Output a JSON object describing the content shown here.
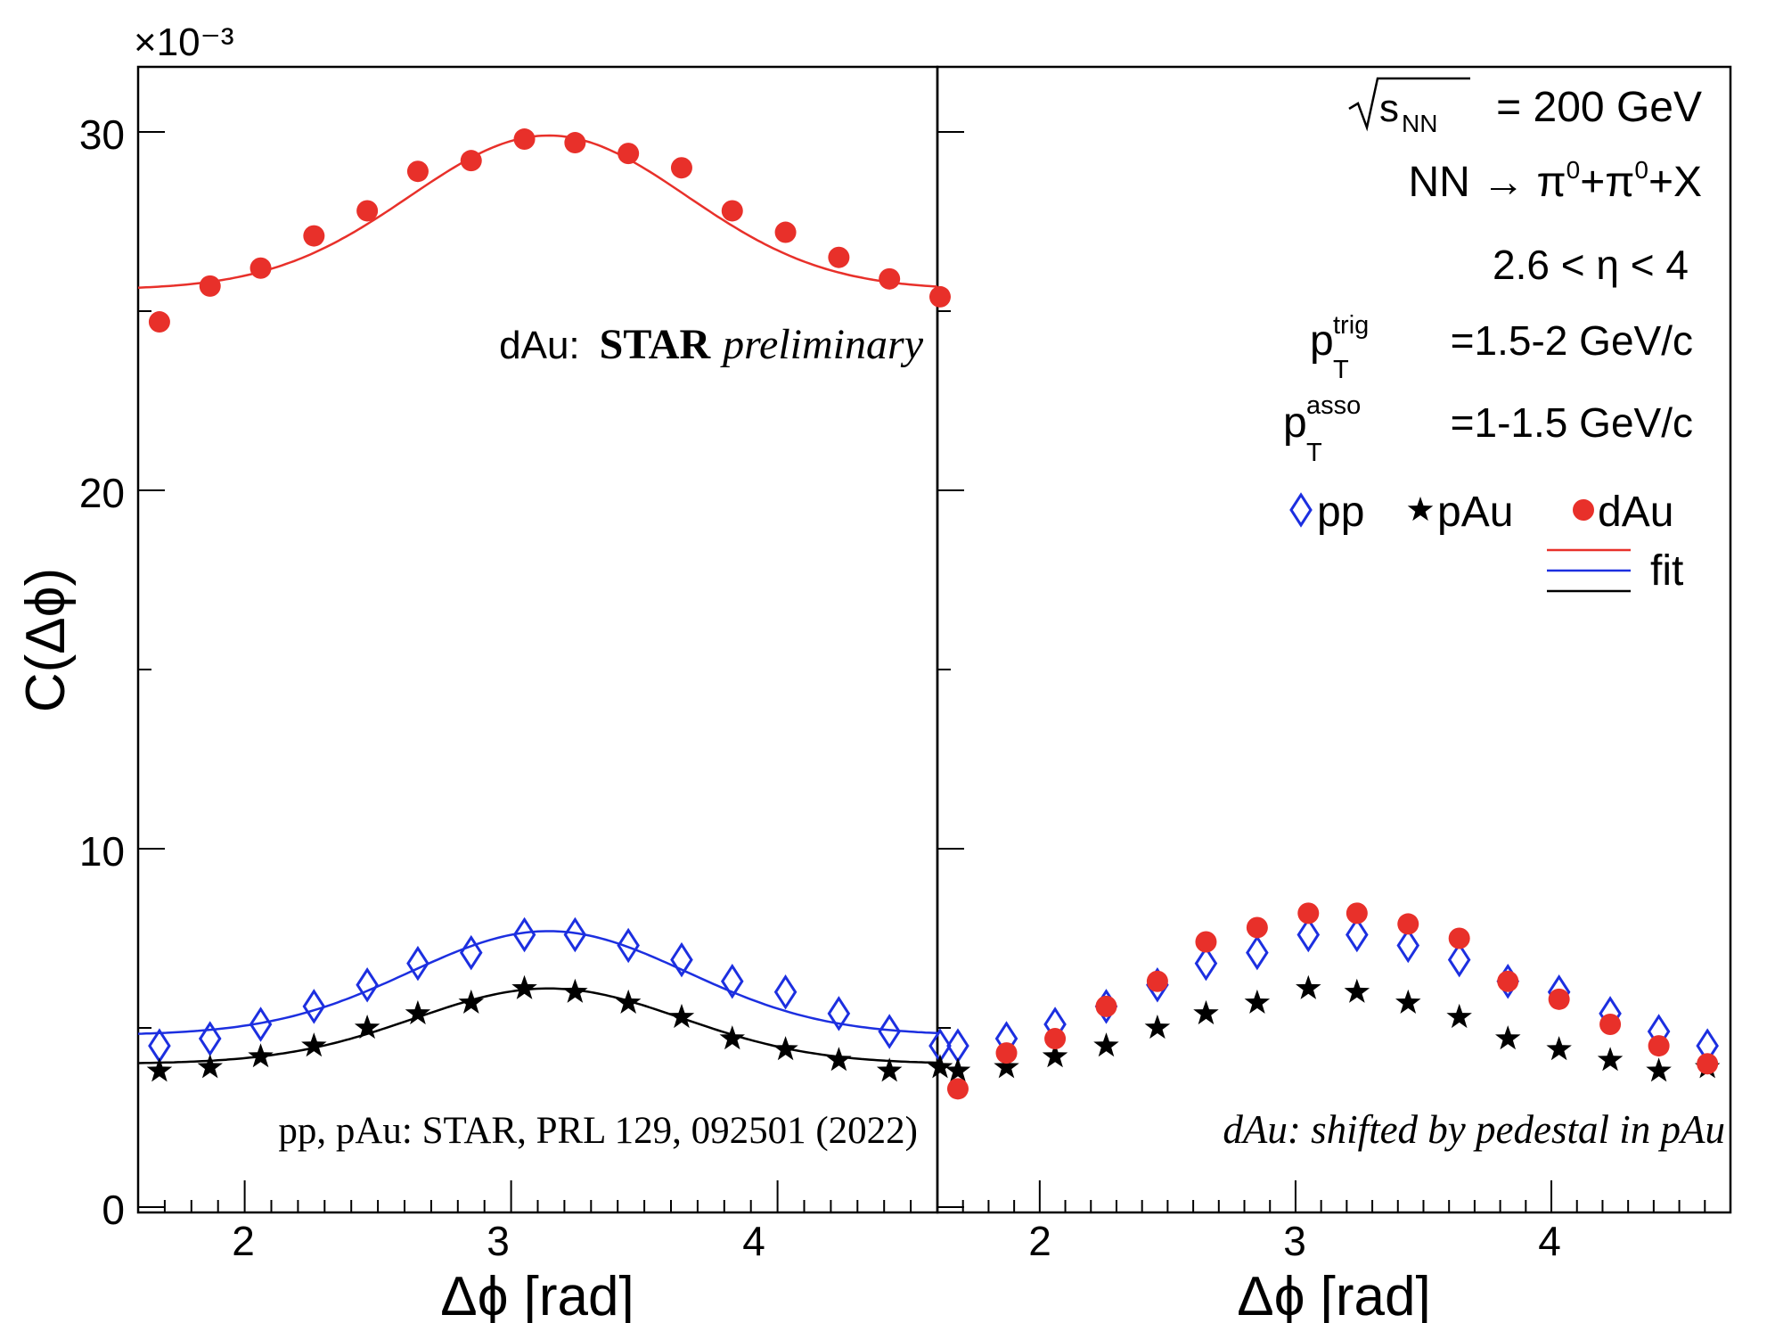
{
  "chart_data": {
    "type": "scatter",
    "ylabel": "C(Δϕ)",
    "y_multiplier": "×10⁻³",
    "ylim": [
      0,
      32
    ],
    "y_ticks": [
      0,
      10,
      20,
      30
    ],
    "y_tick_labels": [
      "0",
      "10",
      "20",
      "30"
    ],
    "grid": false,
    "panels": [
      {
        "xlabel": "Δϕ [rad]",
        "xlim": [
          1.6,
          4.6
        ],
        "x_ticks": [
          2,
          3,
          4
        ],
        "x_tick_labels": [
          "2",
          "3",
          "4"
        ],
        "annotations": {
          "top_plain": "dAu:",
          "top_bold": "STAR",
          "top_italic": "preliminary",
          "bottom": "pp, pAu: STAR, PRL 129, 092501 (2022)"
        },
        "series": [
          {
            "name": "dAu",
            "marker": "circle",
            "color": "#e8302a",
            "x": [
              1.68,
              1.87,
              2.06,
              2.26,
              2.46,
              2.65,
              2.85,
              3.05,
              3.24,
              3.44,
              3.64,
              3.83,
              4.03,
              4.23,
              4.42,
              4.61
            ],
            "y": [
              24.7,
              25.7,
              26.2,
              27.1,
              27.8,
              28.9,
              29.2,
              29.8,
              29.7,
              29.4,
              29.0,
              27.8,
              27.2,
              26.5,
              25.9,
              25.4
            ]
          },
          {
            "name": "pp",
            "marker": "diamond-open",
            "color": "#1c2fe0",
            "x": [
              1.68,
              1.87,
              2.06,
              2.26,
              2.46,
              2.65,
              2.85,
              3.05,
              3.24,
              3.44,
              3.64,
              3.83,
              4.03,
              4.23,
              4.42,
              4.61
            ],
            "y": [
              4.5,
              4.7,
              5.1,
              5.6,
              6.2,
              6.8,
              7.1,
              7.6,
              7.6,
              7.3,
              6.9,
              6.3,
              6.0,
              5.4,
              4.9,
              4.5
            ]
          },
          {
            "name": "pAu",
            "marker": "star",
            "color": "#000000",
            "x": [
              1.68,
              1.87,
              2.06,
              2.26,
              2.46,
              2.65,
              2.85,
              3.05,
              3.24,
              3.44,
              3.64,
              3.83,
              4.03,
              4.23,
              4.42,
              4.61
            ],
            "y": [
              3.8,
              3.9,
              4.2,
              4.5,
              5.0,
              5.4,
              5.7,
              6.1,
              6.0,
              5.7,
              5.3,
              4.7,
              4.4,
              4.1,
              3.8,
              3.9
            ]
          }
        ],
        "fits": [
          {
            "name": "dAu fit",
            "color": "#e8302a",
            "pedestal": 25.6,
            "amplitude": 4.3,
            "mean": 3.14,
            "sigma": 0.52
          },
          {
            "name": "pp fit",
            "color": "#1c2fe0",
            "pedestal": 4.8,
            "amplitude": 2.9,
            "mean": 3.14,
            "sigma": 0.52
          },
          {
            "name": "pAu fit",
            "color": "#000000",
            "pedestal": 4.0,
            "amplitude": 2.1,
            "mean": 3.14,
            "sigma": 0.5
          }
        ]
      },
      {
        "xlabel": "Δϕ [rad]",
        "xlim": [
          1.6,
          4.7
        ],
        "x_ticks": [
          2,
          3,
          4
        ],
        "x_tick_labels": [
          "2",
          "3",
          "4"
        ],
        "annotations": {
          "bottom": "dAu: shifted by pedestal in pAu"
        },
        "series": [
          {
            "name": "pp",
            "marker": "diamond-open",
            "color": "#1c2fe0",
            "x": [
              1.68,
              1.87,
              2.06,
              2.26,
              2.46,
              2.65,
              2.85,
              3.05,
              3.24,
              3.44,
              3.64,
              3.83,
              4.03,
              4.23,
              4.42,
              4.61
            ],
            "y": [
              4.5,
              4.7,
              5.1,
              5.6,
              6.2,
              6.8,
              7.1,
              7.6,
              7.6,
              7.3,
              6.9,
              6.3,
              6.0,
              5.4,
              4.9,
              4.5
            ]
          },
          {
            "name": "pAu",
            "marker": "star",
            "color": "#000000",
            "x": [
              1.68,
              1.87,
              2.06,
              2.26,
              2.46,
              2.65,
              2.85,
              3.05,
              3.24,
              3.44,
              3.64,
              3.83,
              4.03,
              4.23,
              4.42,
              4.61
            ],
            "y": [
              3.8,
              3.9,
              4.2,
              4.5,
              5.0,
              5.4,
              5.7,
              6.1,
              6.0,
              5.7,
              5.3,
              4.7,
              4.4,
              4.1,
              3.8,
              3.9
            ]
          },
          {
            "name": "dAu",
            "marker": "circle",
            "color": "#e8302a",
            "x": [
              1.68,
              1.87,
              2.06,
              2.26,
              2.46,
              2.65,
              2.85,
              3.05,
              3.24,
              3.44,
              3.64,
              3.83,
              4.03,
              4.23,
              4.42,
              4.61
            ],
            "y": [
              3.3,
              4.3,
              4.7,
              5.6,
              6.3,
              7.4,
              7.8,
              8.2,
              8.2,
              7.9,
              7.5,
              6.3,
              5.8,
              5.1,
              4.5,
              4.0
            ]
          }
        ],
        "info": {
          "sqrt_s_label": "s",
          "sqrt_s_sub": "NN",
          "sqrt_s_value": " = 200 GeV",
          "reaction_left": "NN → π",
          "reaction_mid": "+π",
          "reaction_right": "+X",
          "reaction_sup": "0",
          "eta_range": "2.6 < η < 4",
          "pt_symbol": "p",
          "pt_sub": "T",
          "trig_sup": "trig",
          "trig_value": "=1.5-2 GeV/c",
          "asso_sup": "asso",
          "asso_value": "=1-1.5 GeV/c"
        },
        "legend": {
          "pp_label": "pp",
          "pAu_label": "pAu",
          "dAu_label": "dAu",
          "fit_label": "fit"
        }
      }
    ]
  }
}
